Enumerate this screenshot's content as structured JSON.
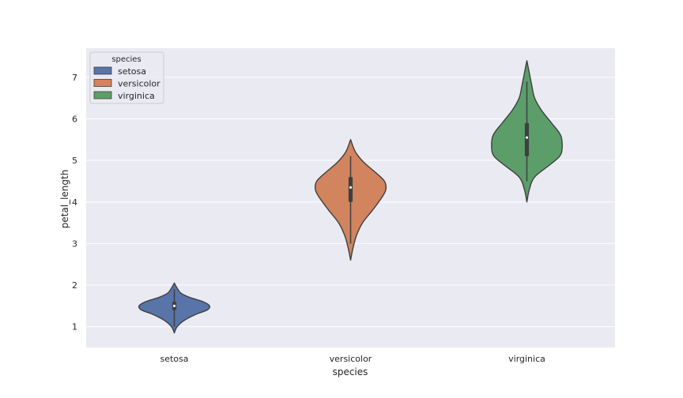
{
  "chart_data": {
    "type": "violin",
    "title": "",
    "xlabel": "species",
    "ylabel": "petal_length",
    "categories": [
      "setosa",
      "versicolor",
      "virginica"
    ],
    "ylim": [
      0.5,
      7.7
    ],
    "yticks": [
      1,
      2,
      3,
      4,
      5,
      6,
      7
    ],
    "grid": true,
    "legend": {
      "title": "species",
      "placement": "top-left",
      "entries": [
        "setosa",
        "versicolor",
        "virginica"
      ]
    },
    "colors": {
      "setosa": "#5874a8",
      "versicolor": "#d1845d",
      "virginica": "#5c9e6a",
      "background": "#eaeaf2",
      "grid": "#ffffff",
      "outline": "#3f3f3f"
    },
    "series": [
      {
        "category": "setosa",
        "min": 1.0,
        "q1": 1.4,
        "median": 1.5,
        "q3": 1.6,
        "max": 1.9,
        "density": [
          [
            0.85,
            0.0
          ],
          [
            1.0,
            0.08
          ],
          [
            1.15,
            0.28
          ],
          [
            1.3,
            0.62
          ],
          [
            1.4,
            0.93
          ],
          [
            1.5,
            1.0
          ],
          [
            1.6,
            0.82
          ],
          [
            1.7,
            0.45
          ],
          [
            1.8,
            0.2
          ],
          [
            1.9,
            0.1
          ],
          [
            2.05,
            0.0
          ]
        ]
      },
      {
        "category": "versicolor",
        "min": 3.0,
        "q1": 4.0,
        "median": 4.35,
        "q3": 4.6,
        "max": 5.1,
        "density": [
          [
            2.6,
            0.0
          ],
          [
            2.9,
            0.07
          ],
          [
            3.2,
            0.17
          ],
          [
            3.5,
            0.34
          ],
          [
            3.8,
            0.62
          ],
          [
            4.1,
            0.88
          ],
          [
            4.3,
            1.0
          ],
          [
            4.5,
            0.96
          ],
          [
            4.7,
            0.72
          ],
          [
            4.95,
            0.38
          ],
          [
            5.2,
            0.14
          ],
          [
            5.5,
            0.0
          ]
        ]
      },
      {
        "category": "virginica",
        "min": 4.5,
        "q1": 5.1,
        "median": 5.55,
        "q3": 5.9,
        "max": 6.9,
        "density": [
          [
            4.0,
            0.0
          ],
          [
            4.3,
            0.07
          ],
          [
            4.6,
            0.22
          ],
          [
            4.9,
            0.66
          ],
          [
            5.1,
            0.93
          ],
          [
            5.3,
            1.0
          ],
          [
            5.6,
            0.96
          ],
          [
            5.9,
            0.7
          ],
          [
            6.2,
            0.42
          ],
          [
            6.5,
            0.22
          ],
          [
            6.8,
            0.14
          ],
          [
            7.1,
            0.07
          ],
          [
            7.4,
            0.0
          ]
        ]
      }
    ]
  }
}
